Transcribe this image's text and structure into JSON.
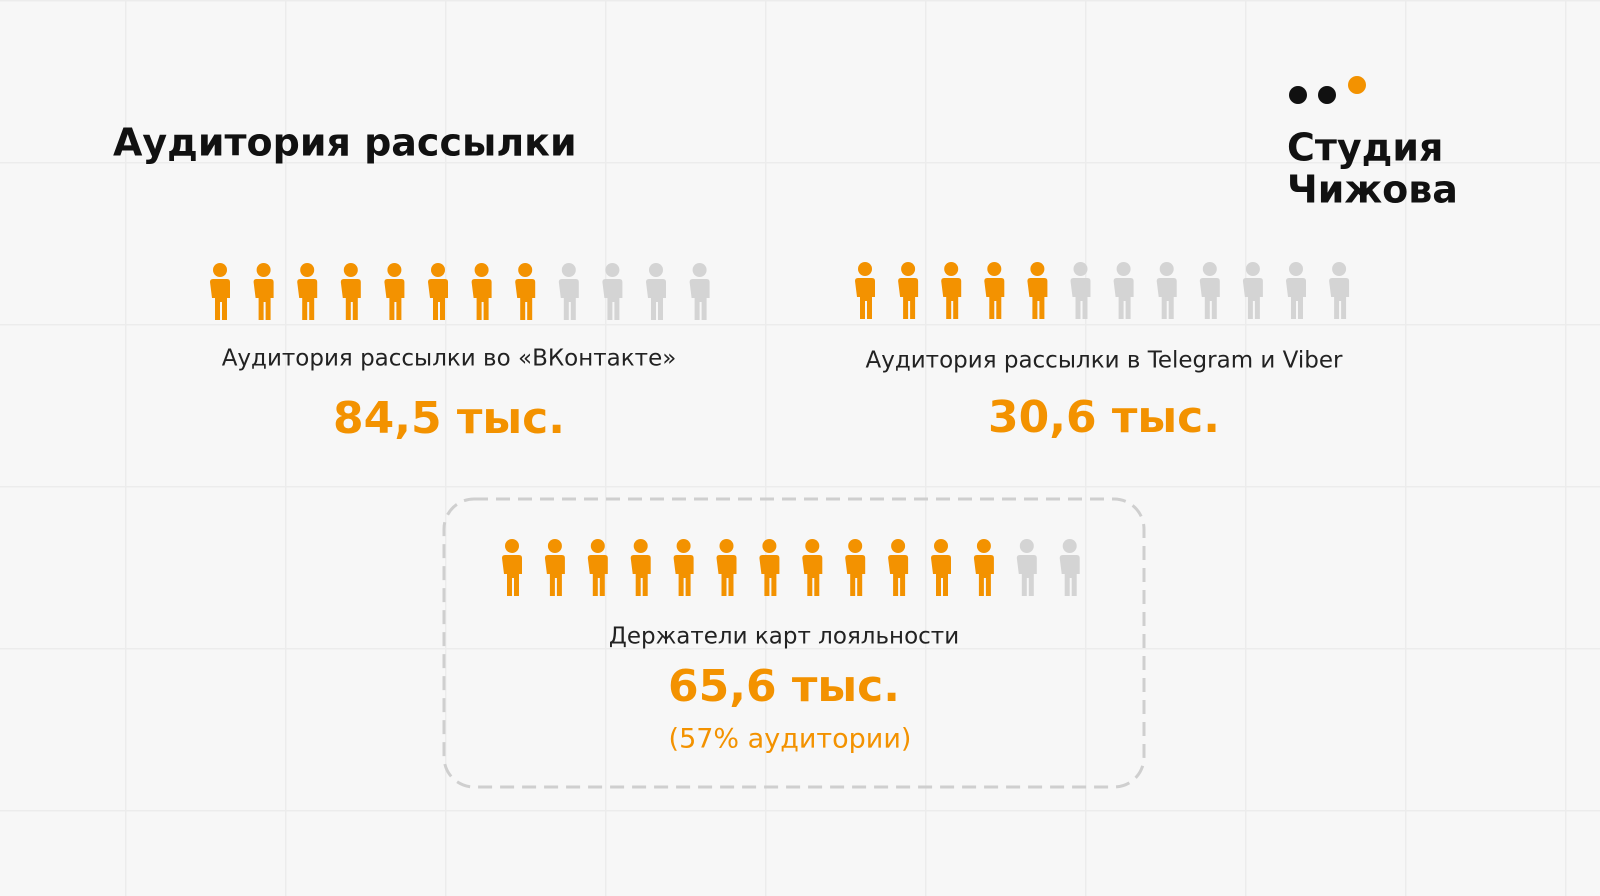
{
  "title": "Аудитория рассылки",
  "logo": {
    "line1": "Студия",
    "line2": "Чижова"
  },
  "colors": {
    "accent": "#f39200",
    "inactive": "#d4d4d4"
  },
  "groups": [
    {
      "label": "Аудитория рассылки во «ВКонтакте»",
      "value": "84,5 тыс.",
      "icons_filled": 8,
      "icons_total": 12
    },
    {
      "label": "Аудитория рассылки в Telegram и Viber",
      "value": "30,6 тыс.",
      "icons_filled": 5,
      "icons_total": 12
    },
    {
      "label": "Держатели карт лояльности",
      "value": "65,6 тыс.",
      "note": "(57% аудитории)",
      "icons_filled": 12,
      "icons_total": 14
    }
  ]
}
